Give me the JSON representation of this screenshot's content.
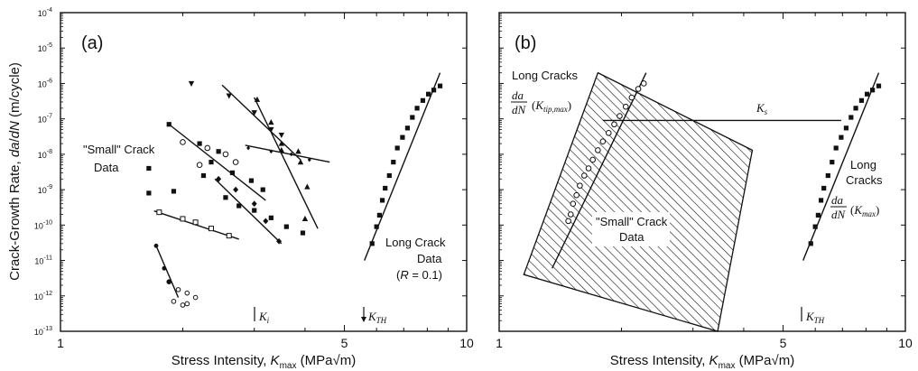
{
  "chart_data": [
    {
      "type": "scatter",
      "panel_label": "(a)",
      "x_scale": "log",
      "y_scale": "log",
      "xlim": [
        1,
        10
      ],
      "ylim": [
        1e-13,
        0.0001
      ],
      "xlabel": "Stress Intensity, K_max (MPa√m)",
      "ylabel": "Crack-Growth Rate, da/dN (m/cycle)",
      "x_ticks": [
        "1",
        "5",
        "10"
      ],
      "y_ticks": [
        "10^-4",
        "10^-5",
        "10^-6",
        "10^-7",
        "10^-8",
        "10^-9",
        "10^-10",
        "10^-11",
        "10^-12",
        "10^-13"
      ],
      "annotations": [
        {
          "text": "\"Small\" Crack",
          "x": 1.05,
          "y": 1.2e-08
        },
        {
          "text": "Data",
          "x": 1.12,
          "y": 3e-09
        },
        {
          "text": "Long Crack",
          "x": 5.9,
          "y": 3e-11
        },
        {
          "text": "Data",
          "x": 6.6,
          "y": 7e-12
        },
        {
          "text": "(R = 0.1)",
          "x": 6.5,
          "y": 1.8e-12
        },
        {
          "text": "K_i",
          "x": 3.2,
          "y": 3e-13,
          "marker": "bar"
        },
        {
          "text": "K_TH",
          "x": 5.55,
          "y": 3e-13,
          "marker": "arrow"
        }
      ],
      "series": [
        {
          "marker": "square",
          "points": [
            [
              2.55,
              6e-10
            ],
            [
              2.75,
              3.5e-10
            ],
            [
              3.0,
              2.6e-10
            ],
            [
              3.3,
              1.6e-10
            ],
            [
              3.6,
              9e-11
            ],
            [
              3.95,
              6e-11
            ],
            [
              2.35,
              6e-09
            ],
            [
              2.65,
              3e-09
            ],
            [
              2.95,
              1.8e-09
            ],
            [
              3.15,
              1e-09
            ],
            [
              1.85,
              7e-08
            ],
            [
              2.2,
              2e-08
            ],
            [
              2.45,
              1.2e-08
            ],
            [
              1.65,
              8e-10
            ],
            [
              1.9,
              9e-10
            ],
            [
              1.65,
              4e-09
            ],
            [
              2.25,
              2.5e-09
            ]
          ],
          "fit": [
            [
              1.85,
              7e-08
            ],
            [
              3.2,
              5e-10
            ]
          ]
        },
        {
          "marker": "triangle-up",
          "points": [
            [
              3.05,
              3.5e-07
            ],
            [
              3.3,
              8e-08
            ],
            [
              3.5,
              2e-08
            ],
            [
              3.9,
              6e-09
            ],
            [
              4.05,
              1.2e-09
            ],
            [
              4.0,
              1.5e-10
            ],
            [
              3.5,
              1.3e-08
            ],
            [
              3.85,
              1.2e-08
            ]
          ],
          "fit": [
            [
              3.0,
              4e-07
            ],
            [
              4.3,
              8e-11
            ]
          ]
        },
        {
          "marker": "triangle-down",
          "points": [
            [
              2.1,
              1e-06
            ],
            [
              2.6,
              4.5e-07
            ],
            [
              3.0,
              1.5e-07
            ],
            [
              3.3,
              5e-08
            ],
            [
              3.5,
              3.5e-08
            ]
          ],
          "fit": [
            [
              2.5,
              9e-07
            ],
            [
              3.9,
              7e-09
            ]
          ]
        },
        {
          "marker": "diamond",
          "points": [
            [
              2.45,
              2e-09
            ],
            [
              2.7,
              1e-09
            ],
            [
              3.0,
              4e-10
            ],
            [
              3.2,
              1.3e-10
            ],
            [
              3.45,
              3.5e-11
            ]
          ],
          "fit": [
            [
              2.4,
              2e-09
            ],
            [
              3.5,
              3e-11
            ]
          ]
        },
        {
          "marker": "diamond-small",
          "points": [
            [
              2.9,
              1.5e-08
            ],
            [
              3.3,
              1.2e-08
            ],
            [
              3.7,
              1e-08
            ],
            [
              4.1,
              7e-09
            ]
          ],
          "fit": [
            [
              2.85,
              1.8e-08
            ],
            [
              4.6,
              6e-09
            ]
          ]
        },
        {
          "marker": "circle-open",
          "points": [
            [
              2.0,
              2.2e-08
            ],
            [
              2.3,
              1.5e-08
            ],
            [
              2.55,
              1e-08
            ],
            [
              2.7,
              6e-09
            ],
            [
              2.2,
              5e-09
            ]
          ],
          "fit": []
        },
        {
          "marker": "square-open",
          "points": [
            [
              1.75,
              2.3e-10
            ],
            [
              2.0,
              1.5e-10
            ],
            [
              2.15,
              1.2e-10
            ],
            [
              2.35,
              8e-11
            ],
            [
              2.6,
              5e-11
            ]
          ],
          "fit": [
            [
              1.7,
              2.5e-10
            ],
            [
              2.75,
              4e-11
            ]
          ]
        },
        {
          "marker": "circle-open-small",
          "points": [
            [
              1.85,
              2.5e-12
            ],
            [
              1.95,
              1.5e-12
            ],
            [
              2.05,
              1.2e-12
            ],
            [
              2.15,
              9e-13
            ],
            [
              1.9,
              7e-13
            ],
            [
              2.05,
              6e-13
            ],
            [
              2.0,
              5.5e-13
            ]
          ],
          "fit": []
        },
        {
          "marker": "circle",
          "points": [
            [
              1.72,
              2.6e-11
            ],
            [
              1.8,
              6e-12
            ],
            [
              1.85,
              2.5e-12
            ]
          ],
          "fit": [
            [
              1.72,
              2.6e-11
            ],
            [
              1.95,
              9e-13
            ]
          ]
        },
        {
          "marker": "square-long",
          "points": [
            [
              5.85,
              3e-11
            ],
            [
              6.0,
              9e-11
            ],
            [
              6.1,
              1.9e-10
            ],
            [
              6.2,
              5e-10
            ],
            [
              6.3,
              1.1e-09
            ],
            [
              6.45,
              2.5e-09
            ],
            [
              6.6,
              6e-09
            ],
            [
              6.75,
              1.5e-08
            ],
            [
              6.95,
              3e-08
            ],
            [
              7.15,
              5.5e-08
            ],
            [
              7.35,
              1.1e-07
            ],
            [
              7.55,
              2e-07
            ],
            [
              7.8,
              3.3e-07
            ],
            [
              8.05,
              5e-07
            ],
            [
              8.3,
              6.5e-07
            ],
            [
              8.6,
              8.5e-07
            ]
          ],
          "fit": [
            [
              5.6,
              1e-11
            ],
            [
              8.6,
              2e-06
            ]
          ]
        }
      ]
    },
    {
      "type": "scatter",
      "panel_label": "(b)",
      "x_scale": "log",
      "y_scale": "log",
      "xlim": [
        1,
        10
      ],
      "ylim": [
        1e-13,
        0.0001
      ],
      "xlabel": "Stress Intensity, K_max (MPa√m)",
      "ylabel": "",
      "x_ticks": [
        "1",
        "5",
        "10"
      ],
      "region": {
        "label_line1": "\"Small\" Crack",
        "label_line2": "Data",
        "polygon": [
          [
            1.75,
            2e-06
          ],
          [
            4.2,
            1.3e-08
          ],
          [
            3.45,
            1e-13
          ],
          [
            1.15,
            4e-12
          ]
        ]
      },
      "ks": {
        "label": "K_s",
        "y": 9e-08,
        "x_from": 1.8,
        "x_to": 6.95
      },
      "annotations": [
        {
          "text": "Long Cracks",
          "x": 1.27,
          "y": 9e-07
        },
        {
          "text": "da/dN (K_tip,max)",
          "x": 1.27,
          "y": 2.5e-07
        },
        {
          "text": "Long",
          "x": 7.0,
          "y": 3e-09
        },
        {
          "text": "Cracks",
          "x": 6.9,
          "y": 9e-10
        },
        {
          "text": "da/dN (K_max)",
          "x": 6.95,
          "y": 1.5e-10
        },
        {
          "text": "K_TH",
          "x": 5.45,
          "y": 3e-13,
          "marker": "bar"
        }
      ],
      "series": [
        {
          "marker": "circle-open",
          "points": [
            [
              1.48,
              1.3e-10
            ],
            [
              1.5,
              2e-10
            ],
            [
              1.52,
              4e-10
            ],
            [
              1.55,
              7e-10
            ],
            [
              1.58,
              1.3e-09
            ],
            [
              1.62,
              2.5e-09
            ],
            [
              1.66,
              4e-09
            ],
            [
              1.7,
              7e-09
            ],
            [
              1.75,
              1.3e-08
            ],
            [
              1.8,
              2.3e-08
            ],
            [
              1.86,
              4e-08
            ],
            [
              1.92,
              7e-08
            ],
            [
              1.98,
              1.2e-07
            ],
            [
              2.05,
              2.2e-07
            ],
            [
              2.12,
              4e-07
            ],
            [
              2.2,
              7e-07
            ],
            [
              2.27,
              1e-06
            ]
          ],
          "fit": [
            [
              1.35,
              6e-12
            ],
            [
              2.3,
              2e-06
            ]
          ]
        },
        {
          "marker": "square-long",
          "points": [
            [
              5.85,
              3e-11
            ],
            [
              6.0,
              9e-11
            ],
            [
              6.1,
              1.9e-10
            ],
            [
              6.2,
              5e-10
            ],
            [
              6.3,
              1.1e-09
            ],
            [
              6.45,
              2.5e-09
            ],
            [
              6.6,
              6e-09
            ],
            [
              6.75,
              1.5e-08
            ],
            [
              6.95,
              3e-08
            ],
            [
              7.15,
              5.5e-08
            ],
            [
              7.35,
              1.1e-07
            ],
            [
              7.55,
              2e-07
            ],
            [
              7.8,
              3.3e-07
            ],
            [
              8.05,
              5e-07
            ],
            [
              8.3,
              6.5e-07
            ],
            [
              8.6,
              8.5e-07
            ]
          ],
          "fit": [
            [
              5.6,
              1e-11
            ],
            [
              8.6,
              2e-06
            ]
          ]
        }
      ]
    }
  ]
}
